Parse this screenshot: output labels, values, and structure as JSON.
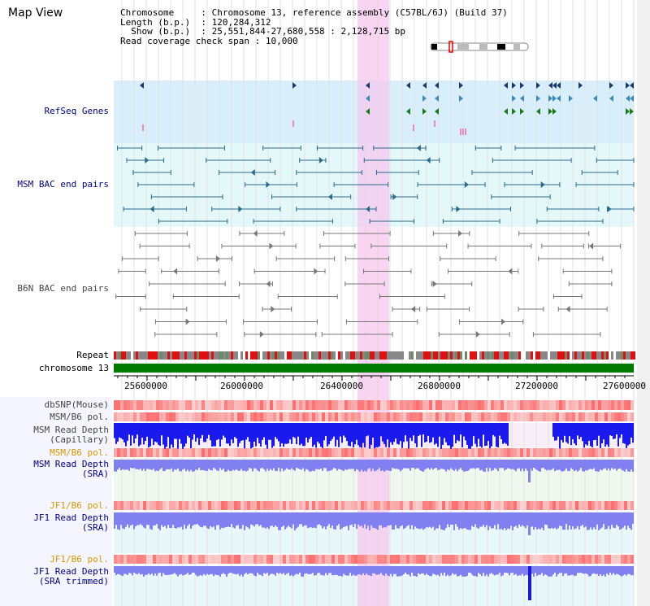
{
  "window": {
    "title": "Map View"
  },
  "info": {
    "chromosome_key": "Chromosome",
    "chromosome_value": "Chromosome 13, reference assembly (C57BL/6J) (Build 37)",
    "length_key": "Length (b.p.)",
    "length_value": "120,284,312",
    "show_key": "Show (b.p.)",
    "show_value": "25,551,844-27,680,558 : 2,128,715 bp",
    "span_key": "Read coverage check span",
    "span_value": "10,000"
  },
  "tracks": {
    "refseq": "RefSeq Genes",
    "msm_bac": "MSM BAC end pairs",
    "b6n_bac": "B6N BAC end pairs",
    "repeat": "Repeat",
    "chromosome": "chromosome 13",
    "dbsnp": "dbSNP(Mouse)",
    "msm_b6_pol_1": "MSM/B6 pol.",
    "msm_depth_cap_1": "MSM Read Depth",
    "msm_depth_cap_2": "(Capillary)",
    "msm_b6_pol_2": "MSM/B6 pol.",
    "msm_depth_sra_1": "MSM Read Depth",
    "msm_depth_sra_2": "(SRA)",
    "jf1_b6_pol_1": "JF1/B6 pol.",
    "jf1_depth_sra_1": "JF1 Read Depth",
    "jf1_depth_sra_2": "(SRA)",
    "jf1_b6_pol_2": "JF1/B6 pol.",
    "jf1_depth_trim_1": "JF1 Read Depth",
    "jf1_depth_trim_2": "(SRA trimmed)"
  },
  "axis": {
    "ticks": [
      "25600000",
      "26000000",
      "26400000",
      "26800000",
      "27200000",
      "27600000"
    ]
  },
  "colors": {
    "label_blue": "#00008b",
    "label_orange": "#d79a00",
    "highlight": "#f5c8ee",
    "refseq_bg": "#d8eefa",
    "msm_bg": "#e4f8fa",
    "chromosome_bar": "#007a00",
    "depth_cap": "#1a1aee",
    "depth_sra": "#8080f0"
  }
}
